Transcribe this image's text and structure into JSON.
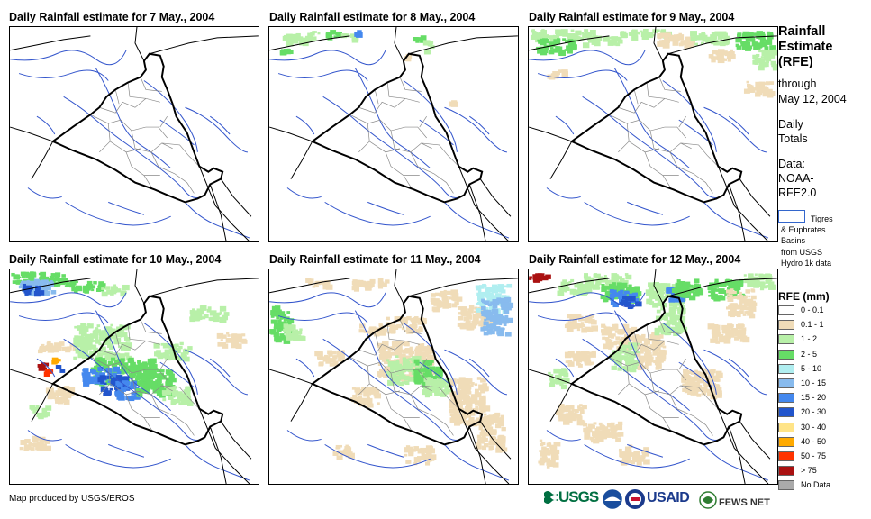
{
  "panels": [
    {
      "title": "Daily Rainfall estimate for 7 May., 2004"
    },
    {
      "title": "Daily Rainfall estimate for 8 May., 2004"
    },
    {
      "title": "Daily Rainfall estimate for 9 May., 2004"
    },
    {
      "title": "Daily Rainfall estimate for 10 May., 2004"
    },
    {
      "title": "Daily Rainfall estimate for 11 May., 2004"
    },
    {
      "title": "Daily Rainfall estimate for 12 May., 2004"
    }
  ],
  "sidebar": {
    "title_lines": [
      "Rainfall",
      "Estimate",
      "(RFE)"
    ],
    "through": "through",
    "date": "May 12, 2004",
    "daily": "Daily",
    "totals": "Totals",
    "data_label": "Data:",
    "data_src1": "NOAA-",
    "data_src2": "RFE2.0",
    "basin_line1": "Tigres",
    "basin_line2": "& Euphrates",
    "basin_line3": "Basins",
    "basin_line4": "from USGS",
    "basin_line5": "Hydro 1k data"
  },
  "legend": {
    "title": "RFE (mm)",
    "items": [
      {
        "label": "0 - 0.1",
        "color": "#ffffff"
      },
      {
        "label": "0.1 - 1",
        "color": "#f0dcb8"
      },
      {
        "label": "1 - 2",
        "color": "#b8f0a8"
      },
      {
        "label": "2 - 5",
        "color": "#66dd66"
      },
      {
        "label": "5 - 10",
        "color": "#b0eef0"
      },
      {
        "label": "10 - 15",
        "color": "#88bbee"
      },
      {
        "label": "15 - 20",
        "color": "#4488ee"
      },
      {
        "label": "20 - 30",
        "color": "#2255cc"
      },
      {
        "label": "30 - 40",
        "color": "#ffe488"
      },
      {
        "label": "40 - 50",
        "color": "#ffaa00"
      },
      {
        "label": "50 - 75",
        "color": "#ff3300"
      },
      {
        "label": "> 75",
        "color": "#aa1111"
      },
      {
        "label": "No Data",
        "color": "#aaaaaa"
      }
    ]
  },
  "footer": {
    "credit": "Map produced by USGS/EROS",
    "logo_usgs": "USGS",
    "logo_usaid": "USAID",
    "logo_fews": "FEWS NET"
  },
  "colors": {
    "boundary": "#000000",
    "rivers": "#3355cc",
    "provinces": "#888888"
  }
}
